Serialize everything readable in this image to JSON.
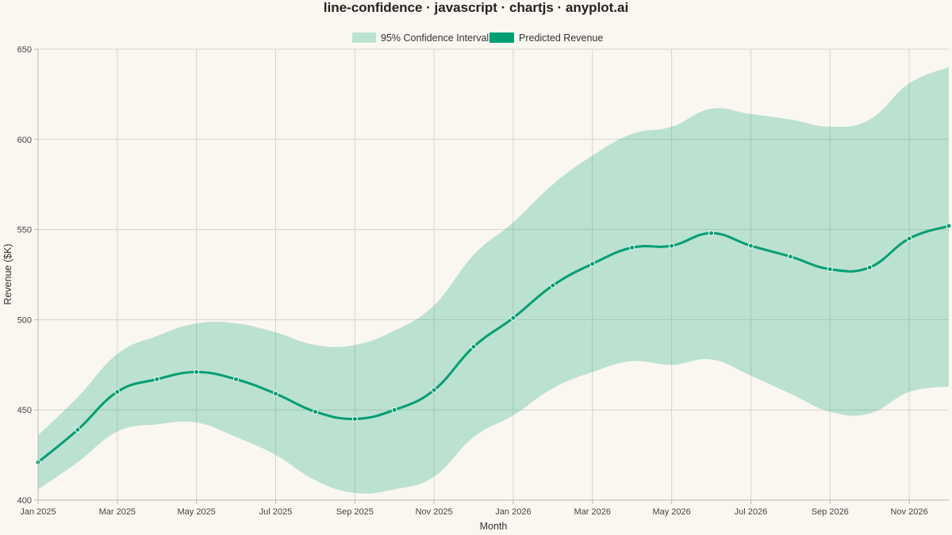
{
  "colors": {
    "background": "#FAF7F1",
    "line": "#009E73",
    "band_fill": "rgba(0,158,115,0.25)",
    "band_legend": "#BCE2D1",
    "grid": "#D6D3CC"
  },
  "chart_data": {
    "type": "line",
    "title": "line-confidence · javascript · chartjs · anyplot.ai",
    "xlabel": "Month",
    "ylabel": "Revenue ($K)",
    "ylim": [
      400,
      650
    ],
    "yticks": [
      400,
      450,
      500,
      550,
      600,
      650
    ],
    "legend_position": "top-center",
    "grid": true,
    "x": [
      "Jan 2025",
      "Feb 2025",
      "Mar 2025",
      "Apr 2025",
      "May 2025",
      "Jun 2025",
      "Jul 2025",
      "Aug 2025",
      "Sep 2025",
      "Oct 2025",
      "Nov 2025",
      "Dec 2025",
      "Jan 2026",
      "Feb 2026",
      "Mar 2026",
      "Apr 2026",
      "May 2026",
      "Jun 2026",
      "Jul 2026",
      "Aug 2026",
      "Sep 2026",
      "Oct 2026",
      "Nov 2026",
      "Dec 2026"
    ],
    "x_tick_labels": [
      "Jan 2025",
      "Mar 2025",
      "May 2025",
      "Jul 2025",
      "Sep 2025",
      "Nov 2025",
      "Jan 2026",
      "Mar 2026",
      "May 2026",
      "Jul 2026",
      "Sep 2026",
      "Nov 2026"
    ],
    "series": [
      {
        "name": "95% Confidence Interval",
        "kind": "band",
        "lower": [
          406,
          421,
          438,
          442,
          443,
          435,
          425,
          411,
          404,
          406,
          413,
          435,
          447,
          462,
          471,
          477,
          475,
          478,
          469,
          459,
          449,
          448,
          460,
          463
        ],
        "upper": [
          436,
          457,
          481,
          491,
          498,
          498,
          493,
          486,
          486,
          494,
          508,
          536,
          554,
          575,
          591,
          603,
          607,
          617,
          614,
          611,
          607,
          611,
          631,
          640
        ]
      },
      {
        "name": "Predicted Revenue",
        "kind": "line",
        "values": [
          421,
          439,
          460,
          467,
          471,
          467,
          459,
          449,
          445,
          450,
          461,
          485,
          501,
          519,
          531,
          540,
          541,
          548,
          541,
          535,
          528,
          529,
          545,
          552
        ]
      }
    ]
  }
}
